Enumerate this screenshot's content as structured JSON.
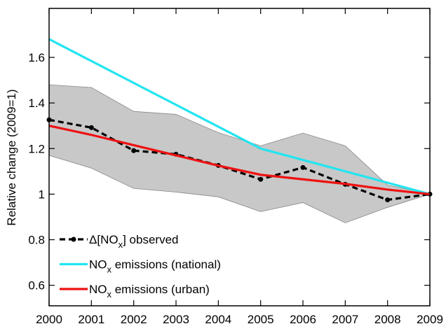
{
  "chart_data": {
    "type": "line",
    "y_label": "Relative change (2009=1)",
    "x": [
      2000,
      2001,
      2002,
      2003,
      2004,
      2005,
      2006,
      2007,
      2008,
      2009
    ],
    "xlim": [
      2000,
      2009
    ],
    "xticks": [
      2000,
      2001,
      2002,
      2003,
      2004,
      2005,
      2006,
      2007,
      2008,
      2009
    ],
    "ylim": [
      0.51,
      1.815
    ],
    "yticks": [
      0.6,
      0.8,
      1,
      1.2,
      1.4,
      1.6
    ],
    "band": {
      "color": "#c8c8c8",
      "upper": [
        1.48,
        1.468,
        1.363,
        1.35,
        1.27,
        1.212,
        1.268,
        1.212,
        1.04,
        1.0
      ],
      "lower": [
        1.17,
        1.114,
        1.025,
        1.009,
        0.988,
        0.923,
        0.963,
        0.874,
        0.942,
        1.0
      ]
    },
    "series": [
      {
        "name": [
          "Δ[NO",
          "x",
          "] observed"
        ],
        "color": "#000000",
        "dashed": true,
        "markers": true,
        "values": [
          1.326,
          1.292,
          1.191,
          1.175,
          1.126,
          1.065,
          1.117,
          1.043,
          0.975,
          1.0
        ]
      },
      {
        "name": [
          "NO",
          "x",
          " emissions (national)"
        ],
        "color": "#22e5f0",
        "dashed": false,
        "markers": false,
        "values": [
          1.68,
          1.584,
          1.488,
          1.392,
          1.296,
          1.2,
          1.15,
          1.1,
          1.05,
          1.0
        ]
      },
      {
        "name": [
          "NO",
          "x",
          " emissions (urban)"
        ],
        "color": "#ee1111",
        "dashed": false,
        "markers": false,
        "values": [
          1.3,
          1.26,
          1.215,
          1.17,
          1.125,
          1.085,
          1.065,
          1.045,
          1.02,
          1.0
        ]
      }
    ]
  }
}
